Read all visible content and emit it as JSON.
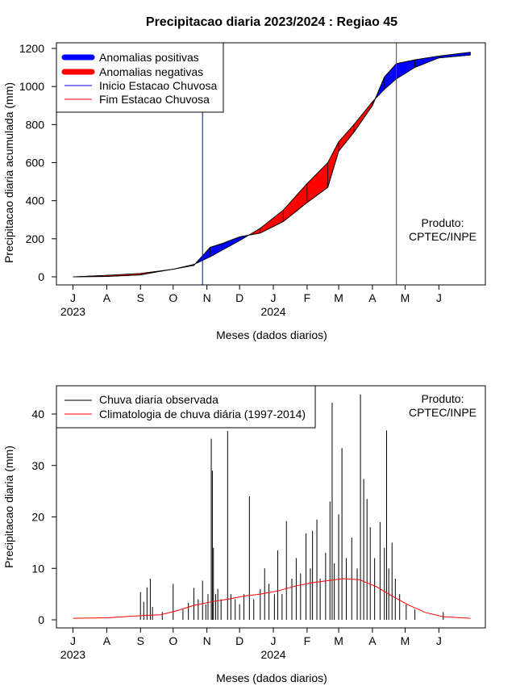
{
  "colors": {
    "positive": "#0000ff",
    "negative": "#ff0000",
    "start_line": "#0000ff",
    "end_line": "#ff0000",
    "observed": "#000000",
    "climatology": "#ff0000"
  },
  "x_axis": {
    "month_labels": [
      "J",
      "A",
      "S",
      "O",
      "N",
      "D",
      "J",
      "F",
      "M",
      "A",
      "M",
      "J"
    ],
    "year_labels": [
      "2023",
      "2024"
    ]
  },
  "chart_data": [
    {
      "type": "area",
      "title": "Precipitacao diaria 2023/2024 : Regiao 45",
      "xlabel": "Meses (dados diarios)",
      "ylabel": "Precipitacao diaria acumulada (mm)",
      "ylim": [
        0,
        1200
      ],
      "yticks": [
        "0",
        "200",
        "400",
        "600",
        "800",
        "1000",
        "1200"
      ],
      "grid": false,
      "legend_position": "top-left",
      "legend": [
        {
          "label": "Anomalias positivas",
          "color": "#0000ff",
          "style": "thick"
        },
        {
          "label": "Anomalias negativas",
          "color": "#ff0000",
          "style": "thick"
        },
        {
          "label": "Inicio Estacao Chuvosa",
          "color": "#0000ff",
          "style": "thin"
        },
        {
          "label": "Fim Estacao Chuvosa",
          "color": "#ff0000",
          "style": "thin"
        }
      ],
      "annotation": [
        "Produto:",
        "CPTEC/INPE"
      ],
      "rainy_season_start": "2023-10-28",
      "rainy_season_end": "2024-04-23",
      "observed_cumulative": {
        "x": [
          "2023-07-01",
          "2023-08-01",
          "2023-09-01",
          "2023-09-15",
          "2023-10-01",
          "2023-10-20",
          "2023-11-04",
          "2023-11-15",
          "2023-12-01",
          "2023-12-20",
          "2024-01-10",
          "2024-02-01",
          "2024-02-20",
          "2024-03-01",
          "2024-03-15",
          "2024-04-01",
          "2024-04-12",
          "2024-04-23",
          "2024-05-10",
          "2024-06-01",
          "2024-06-30"
        ],
        "values": [
          0,
          2,
          10,
          25,
          40,
          60,
          155,
          175,
          210,
          230,
          290,
          390,
          470,
          660,
          760,
          900,
          1050,
          1120,
          1140,
          1160,
          1180
        ]
      },
      "climatological_cumulative": {
        "x": [
          "2023-07-01",
          "2023-08-01",
          "2023-09-01",
          "2023-09-15",
          "2023-10-01",
          "2023-10-20",
          "2023-11-04",
          "2023-11-15",
          "2023-12-01",
          "2023-12-20",
          "2024-01-10",
          "2024-02-01",
          "2024-02-20",
          "2024-03-01",
          "2024-03-15",
          "2024-04-01",
          "2024-04-12",
          "2024-04-23",
          "2024-05-10",
          "2024-06-01",
          "2024-06-30"
        ],
        "values": [
          0,
          8,
          18,
          28,
          40,
          65,
          105,
          140,
          190,
          255,
          350,
          490,
          600,
          710,
          800,
          920,
          985,
          1040,
          1100,
          1150,
          1165
        ]
      }
    },
    {
      "type": "bar",
      "xlabel": "Meses (dados diarios)",
      "ylabel": "Precipitacao diaria (mm)",
      "ylim": [
        0,
        45
      ],
      "yticks": [
        "0",
        "10",
        "20",
        "30",
        "40"
      ],
      "grid": false,
      "legend_position": "top-left",
      "legend": [
        {
          "label": "Chuva diaria observada",
          "color": "#000000"
        },
        {
          "label": "Climatologia de chuva diária (1997-2014)",
          "color": "#ff0000"
        }
      ],
      "annotation": [
        "Produto:",
        "CPTEC/INPE"
      ],
      "observed_daily": [
        {
          "date": "2023-09-01",
          "value": 5.4
        },
        {
          "date": "2023-09-04",
          "value": 3.5
        },
        {
          "date": "2023-09-07",
          "value": 6.3
        },
        {
          "date": "2023-09-10",
          "value": 8.0
        },
        {
          "date": "2023-09-12",
          "value": 2.5
        },
        {
          "date": "2023-09-21",
          "value": 1.5
        },
        {
          "date": "2023-10-01",
          "value": 7.0
        },
        {
          "date": "2023-10-10",
          "value": 2.0
        },
        {
          "date": "2023-10-15",
          "value": 3.3
        },
        {
          "date": "2023-10-20",
          "value": 6.2
        },
        {
          "date": "2023-10-24",
          "value": 4.0
        },
        {
          "date": "2023-10-28",
          "value": 7.6
        },
        {
          "date": "2023-10-31",
          "value": 3.0
        },
        {
          "date": "2023-11-02",
          "value": 5.0
        },
        {
          "date": "2023-11-05",
          "value": 35.2
        },
        {
          "date": "2023-11-06",
          "value": 29.0
        },
        {
          "date": "2023-11-07",
          "value": 14.0
        },
        {
          "date": "2023-11-09",
          "value": 5.0
        },
        {
          "date": "2023-11-11",
          "value": 6.0
        },
        {
          "date": "2023-11-14",
          "value": 4.0
        },
        {
          "date": "2023-11-20",
          "value": 36.7
        },
        {
          "date": "2023-11-23",
          "value": 5.0
        },
        {
          "date": "2023-11-27",
          "value": 4.0
        },
        {
          "date": "2023-12-01",
          "value": 3.0
        },
        {
          "date": "2023-12-05",
          "value": 5.0
        },
        {
          "date": "2023-12-10",
          "value": 24.0
        },
        {
          "date": "2023-12-14",
          "value": 4.0
        },
        {
          "date": "2023-12-20",
          "value": 6.0
        },
        {
          "date": "2023-12-24",
          "value": 10.0
        },
        {
          "date": "2023-12-28",
          "value": 7.0
        },
        {
          "date": "2024-01-02",
          "value": 5.0
        },
        {
          "date": "2024-01-05",
          "value": 13.5
        },
        {
          "date": "2024-01-09",
          "value": 5.0
        },
        {
          "date": "2024-01-13",
          "value": 19.2
        },
        {
          "date": "2024-01-18",
          "value": 8.0
        },
        {
          "date": "2024-01-22",
          "value": 12.0
        },
        {
          "date": "2024-01-26",
          "value": 9.0
        },
        {
          "date": "2024-01-31",
          "value": 16.8
        },
        {
          "date": "2024-02-04",
          "value": 10.0
        },
        {
          "date": "2024-02-06",
          "value": 17.3
        },
        {
          "date": "2024-02-10",
          "value": 19.5
        },
        {
          "date": "2024-02-13",
          "value": 8.0
        },
        {
          "date": "2024-02-18",
          "value": 13.0
        },
        {
          "date": "2024-02-22",
          "value": 23.0
        },
        {
          "date": "2024-02-24",
          "value": 42.2
        },
        {
          "date": "2024-02-26",
          "value": 11.0
        },
        {
          "date": "2024-03-01",
          "value": 20.5
        },
        {
          "date": "2024-03-04",
          "value": 33.4
        },
        {
          "date": "2024-03-08",
          "value": 12.0
        },
        {
          "date": "2024-03-13",
          "value": 16.0
        },
        {
          "date": "2024-03-18",
          "value": 10.0
        },
        {
          "date": "2024-03-21",
          "value": 43.8
        },
        {
          "date": "2024-03-24",
          "value": 27.4
        },
        {
          "date": "2024-03-27",
          "value": 23.5
        },
        {
          "date": "2024-03-30",
          "value": 18.0
        },
        {
          "date": "2024-04-03",
          "value": 12.0
        },
        {
          "date": "2024-04-08",
          "value": 19.0
        },
        {
          "date": "2024-04-12",
          "value": 14.0
        },
        {
          "date": "2024-04-14",
          "value": 36.8
        },
        {
          "date": "2024-04-16",
          "value": 10.0
        },
        {
          "date": "2024-04-19",
          "value": 15.0
        },
        {
          "date": "2024-04-22",
          "value": 8.0
        },
        {
          "date": "2024-04-26",
          "value": 5.0
        },
        {
          "date": "2024-05-02",
          "value": 3.0
        },
        {
          "date": "2024-05-10",
          "value": 2.0
        },
        {
          "date": "2024-06-05",
          "value": 1.5
        }
      ],
      "climatology_daily": {
        "x": [
          "2023-07-01",
          "2023-08-01",
          "2023-09-01",
          "2023-09-20",
          "2023-10-05",
          "2023-10-20",
          "2023-11-05",
          "2023-11-20",
          "2023-12-05",
          "2023-12-20",
          "2024-01-05",
          "2024-01-20",
          "2024-02-05",
          "2024-02-20",
          "2024-03-05",
          "2024-03-20",
          "2024-04-05",
          "2024-04-20",
          "2024-05-05",
          "2024-05-20",
          "2024-06-05",
          "2024-06-30"
        ],
        "values": [
          0.3,
          0.4,
          0.8,
          1.0,
          1.8,
          2.8,
          3.5,
          4.0,
          4.6,
          5.0,
          5.6,
          6.5,
          7.2,
          7.6,
          8.0,
          7.8,
          6.4,
          4.5,
          2.8,
          1.4,
          0.6,
          0.3
        ]
      }
    }
  ]
}
